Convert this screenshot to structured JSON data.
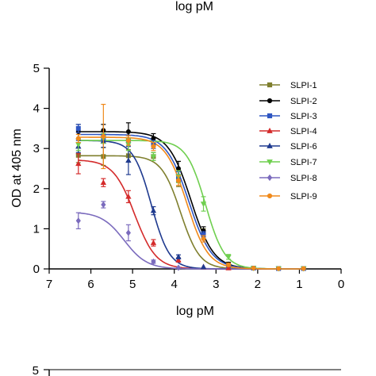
{
  "top_caption": "log pM",
  "bottom_chart_first_tick": "5",
  "chart_data": {
    "type": "line",
    "title": "",
    "xlabel": "log pM",
    "ylabel": "OD at 405 nm",
    "xlim": [
      7,
      0
    ],
    "ylim": [
      0,
      5
    ],
    "x_ticks": [
      7,
      6,
      5,
      4,
      3,
      2,
      1,
      0
    ],
    "y_ticks": [
      0,
      1,
      2,
      3,
      4,
      5
    ],
    "x_tick_labels": [
      "7",
      "6",
      "5",
      "4",
      "3",
      "2",
      "1",
      "0"
    ],
    "y_tick_labels": [
      "0",
      "1",
      "2",
      "3",
      "4",
      "5"
    ],
    "grid": false,
    "legend_position": "top-right",
    "series": [
      {
        "name": "SLPI-1",
        "color": "#7f7f2e",
        "marker": "square",
        "top": 2.82,
        "ic50": 3.85,
        "hill": 1.9,
        "x": [
          6.3,
          5.7,
          5.1,
          4.5,
          3.9,
          3.3,
          2.7,
          2.1,
          1.5,
          0.9
        ],
        "y": [
          2.83,
          2.8,
          2.82,
          2.8,
          2.2,
          0.9,
          0.12,
          0.02,
          0.01,
          0.01
        ],
        "err": [
          0.18,
          0.22,
          0.15,
          0.1,
          0.15,
          0.1,
          0.04,
          0.01,
          0.01,
          0.01
        ]
      },
      {
        "name": "SLPI-2",
        "color": "#000000",
        "marker": "circle",
        "top": 3.42,
        "ic50": 3.6,
        "hill": 1.6,
        "x": [
          6.3,
          5.7,
          5.1,
          4.5,
          3.9,
          3.3,
          2.7,
          2.1,
          1.5,
          0.9
        ],
        "y": [
          3.42,
          3.45,
          3.42,
          3.25,
          2.5,
          0.95,
          0.12,
          0.02,
          0.01,
          0.01
        ],
        "err": [
          0.18,
          0.15,
          0.22,
          0.12,
          0.18,
          0.1,
          0.04,
          0.01,
          0.01,
          0.01
        ]
      },
      {
        "name": "SLPI-3",
        "color": "#2f56c2",
        "marker": "square",
        "top": 3.35,
        "ic50": 3.65,
        "hill": 1.6,
        "x": [
          6.3,
          5.7,
          5.1,
          4.5,
          3.9,
          3.3,
          2.7,
          2.1,
          1.5,
          0.9
        ],
        "y": [
          3.5,
          3.25,
          3.2,
          3.1,
          2.3,
          0.85,
          0.08,
          0.02,
          0.01,
          0.01
        ],
        "err": [
          0.1,
          0.12,
          0.12,
          0.1,
          0.12,
          0.08,
          0.03,
          0.01,
          0.01,
          0.01
        ]
      },
      {
        "name": "SLPI-4",
        "color": "#d42b2b",
        "marker": "triangle",
        "top": 2.72,
        "ic50": 4.95,
        "hill": 1.7,
        "x": [
          6.3,
          5.7,
          5.1,
          4.5,
          3.9,
          3.3,
          2.7
        ],
        "y": [
          2.62,
          2.15,
          1.8,
          0.65,
          0.22,
          0.05,
          0.02
        ],
        "err": [
          0.25,
          0.1,
          0.15,
          0.08,
          0.05,
          0.02,
          0.01
        ]
      },
      {
        "name": "SLPI-6",
        "color": "#1f3a8f",
        "marker": "triangle",
        "top": 3.2,
        "ic50": 4.55,
        "hill": 2.0,
        "x": [
          6.3,
          5.7,
          5.1,
          4.5,
          3.9,
          3.3
        ],
        "y": [
          3.05,
          3.18,
          2.7,
          1.45,
          0.3,
          0.05
        ],
        "err": [
          0.15,
          0.15,
          0.35,
          0.1,
          0.05,
          0.02
        ]
      },
      {
        "name": "SLPI-7",
        "color": "#6fcf4f",
        "marker": "triangle-down",
        "top": 3.2,
        "ic50": 3.25,
        "hill": 1.9,
        "x": [
          6.3,
          5.7,
          5.1,
          4.5,
          3.9,
          3.3,
          2.7,
          2.1,
          1.5,
          0.9
        ],
        "y": [
          3.1,
          3.25,
          3.1,
          2.8,
          2.3,
          1.62,
          0.3,
          0.02,
          0.01,
          0.01
        ],
        "err": [
          0.15,
          0.12,
          0.15,
          0.1,
          0.15,
          0.18,
          0.06,
          0.01,
          0.01,
          0.01
        ]
      },
      {
        "name": "SLPI-8",
        "color": "#7b6bbd",
        "marker": "diamond",
        "top": 1.42,
        "ic50": 5.2,
        "hill": 1.6,
        "x": [
          6.3,
          5.7,
          5.1,
          4.5,
          3.9
        ],
        "y": [
          1.2,
          1.6,
          0.9,
          0.18,
          0.03
        ],
        "err": [
          0.2,
          0.08,
          0.2,
          0.04,
          0.02
        ]
      },
      {
        "name": "SLPI-9",
        "color": "#f08a1c",
        "marker": "circle",
        "top": 3.28,
        "ic50": 3.7,
        "hill": 1.7,
        "x": [
          6.3,
          5.7,
          5.1,
          4.5,
          3.9,
          3.3,
          2.7,
          2.1,
          1.5,
          0.9
        ],
        "y": [
          3.25,
          3.3,
          3.2,
          3.05,
          2.2,
          0.75,
          0.1,
          0.02,
          0.01,
          0.01
        ],
        "err": [
          0.1,
          0.8,
          0.12,
          0.1,
          0.12,
          0.08,
          0.04,
          0.01,
          0.01,
          0.01
        ]
      }
    ]
  }
}
